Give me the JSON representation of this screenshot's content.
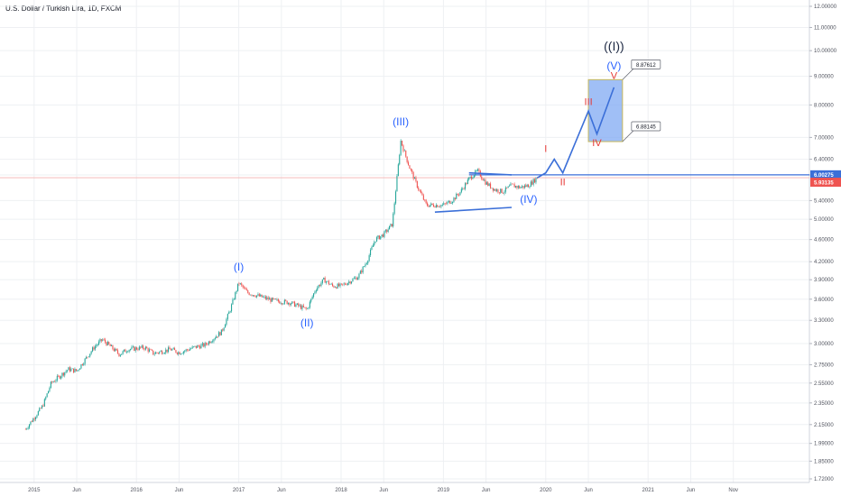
{
  "title": "U.S. Dollar / Turkish Lira, 1D, FXCM",
  "chart_data": {
    "type": "candlestick",
    "symbol": "U.S. Dollar / Turkish Lira",
    "interval": "1D",
    "source": "FXCM",
    "y_scale": "log",
    "ylim": [
      1.72,
      12.0
    ],
    "y_ticks": [
      "12.00000",
      "11.00000",
      "10.00000",
      "9.00000",
      "8.00000",
      "7.00000",
      "6.40000",
      "6.00000",
      "5.40000",
      "5.00000",
      "4.60000",
      "4.20000",
      "3.90000",
      "3.60000",
      "3.30000",
      "3.00000",
      "2.75000",
      "2.55000",
      "2.35000",
      "2.15000",
      "1.99000",
      "1.85000",
      "1.72000"
    ],
    "x_ticks": [
      "2015",
      "Jun",
      "2016",
      "Jun",
      "2017",
      "Jun",
      "2018",
      "Jun",
      "2019",
      "Jun",
      "2020",
      "Jun",
      "2021",
      "Jun",
      "Nov"
    ],
    "price_path": [
      [
        "2014-12",
        2.11
      ],
      [
        "2015-02",
        2.32
      ],
      [
        "2015-03",
        2.55
      ],
      [
        "2015-05",
        2.7
      ],
      [
        "2015-06",
        2.68
      ],
      [
        "2015-08",
        2.95
      ],
      [
        "2015-09",
        3.05
      ],
      [
        "2015-11",
        2.87
      ],
      [
        "2015-12",
        2.93
      ],
      [
        "2016-02",
        2.95
      ],
      [
        "2016-03",
        2.88
      ],
      [
        "2016-05",
        2.93
      ],
      [
        "2016-06",
        2.89
      ],
      [
        "2016-08",
        2.96
      ],
      [
        "2016-09",
        2.98
      ],
      [
        "2016-11",
        3.15
      ],
      [
        "2016-12",
        3.45
      ],
      [
        "2017-01",
        3.85
      ],
      [
        "2017-02",
        3.7
      ],
      [
        "2017-04",
        3.62
      ],
      [
        "2017-05",
        3.58
      ],
      [
        "2017-07",
        3.55
      ],
      [
        "2017-08",
        3.5
      ],
      [
        "2017-09",
        3.45
      ],
      [
        "2017-10",
        3.75
      ],
      [
        "2017-11",
        3.9
      ],
      [
        "2017-12",
        3.8
      ],
      [
        "2018-01",
        3.8
      ],
      [
        "2018-03",
        3.95
      ],
      [
        "2018-04",
        4.2
      ],
      [
        "2018-05",
        4.6
      ],
      [
        "2018-06",
        4.7
      ],
      [
        "2018-07",
        4.9
      ],
      [
        "2018-08",
        6.9
      ],
      [
        "2018-09",
        6.2
      ],
      [
        "2018-10",
        5.7
      ],
      [
        "2018-11",
        5.3
      ],
      [
        "2018-12",
        5.3
      ],
      [
        "2019-01",
        5.3
      ],
      [
        "2019-02",
        5.4
      ],
      [
        "2019-03",
        5.6
      ],
      [
        "2019-04",
        5.9
      ],
      [
        "2019-05",
        6.1
      ],
      [
        "2019-06",
        5.8
      ],
      [
        "2019-07",
        5.65
      ],
      [
        "2019-08",
        5.6
      ],
      [
        "2019-09",
        5.75
      ],
      [
        "2019-10",
        5.7
      ],
      [
        "2019-11",
        5.75
      ],
      [
        "2019-12",
        5.93
      ]
    ],
    "price_labels": [
      {
        "value": "8.87612",
        "style": "callout"
      },
      {
        "value": "6.88145",
        "style": "callout"
      },
      {
        "value": "6.00275",
        "style": "blue-tag"
      },
      {
        "value": "5.93135",
        "style": "red-tag"
      }
    ],
    "target_zone": {
      "from": "2020-06",
      "to": "2020-10",
      "low": 6.88145,
      "high": 8.87612
    },
    "horizontal_level": {
      "value": 6.00275,
      "from": "2019-04"
    },
    "triangle": {
      "upper": [
        [
          "2019-04",
          6.05
        ],
        [
          "2019-09",
          6.0
        ]
      ],
      "lower": [
        [
          "2018-12",
          5.15
        ],
        [
          "2019-09",
          5.25
        ]
      ]
    },
    "projection_path": [
      [
        "2019-12",
        5.93
      ],
      [
        "2020-01",
        6.05
      ],
      [
        "2020-02",
        6.4
      ],
      [
        "2020-03",
        6.05
      ],
      [
        "2020-06",
        7.8
      ],
      [
        "2020-07",
        7.1
      ],
      [
        "2020-09",
        8.6
      ]
    ],
    "annotations": [
      {
        "text": "(I)",
        "at": [
          "2017-01",
          4.05
        ],
        "color": "blue"
      },
      {
        "text": "(II)",
        "at": [
          "2017-09",
          3.22
        ],
        "color": "blue"
      },
      {
        "text": "(III)",
        "at": [
          "2018-08",
          7.35
        ],
        "color": "blue"
      },
      {
        "text": "(IV)",
        "at": [
          "2019-11",
          5.35
        ],
        "color": "blue"
      },
      {
        "text": "(V)",
        "at": [
          "2020-09",
          9.25
        ],
        "color": "blue"
      },
      {
        "text": "((I))",
        "at": [
          "2020-09",
          10.0
        ],
        "color": "dark"
      },
      {
        "text": "I",
        "at": [
          "2020-01",
          6.6
        ],
        "color": "red"
      },
      {
        "text": "II",
        "at": [
          "2020-03",
          5.75
        ],
        "color": "red"
      },
      {
        "text": "III",
        "at": [
          "2020-06",
          8.0
        ],
        "color": "red"
      },
      {
        "text": "IV",
        "at": [
          "2020-07",
          6.75
        ],
        "color": "red"
      },
      {
        "text": "V",
        "at": [
          "2020-09",
          8.9
        ],
        "color": "red"
      }
    ],
    "grid": true
  }
}
